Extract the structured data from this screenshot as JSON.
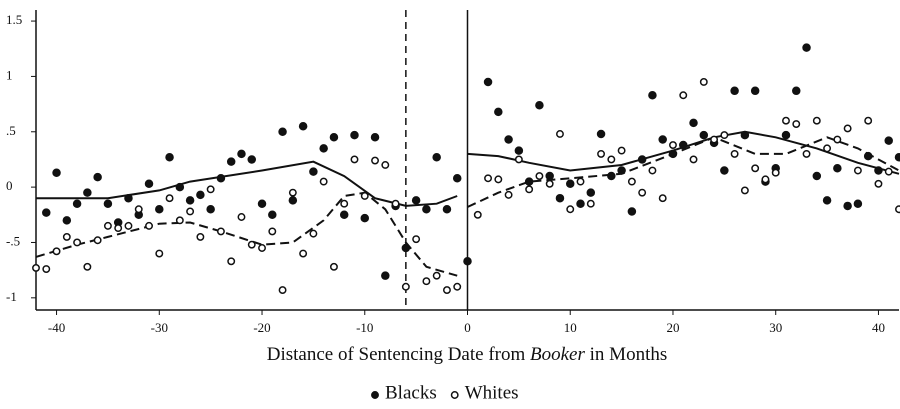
{
  "chart_data": {
    "type": "scatter",
    "xlabel": [
      "Distance of Sentencing Date from ",
      "Booker",
      " in Months"
    ],
    "xlabel_italic": [
      false,
      true,
      false
    ],
    "xlim": [
      -42,
      42
    ],
    "xticks": [
      -40,
      -30,
      -20,
      -10,
      0,
      10,
      20,
      30,
      40
    ],
    "ylim": [
      -1.11,
      1.6
    ],
    "yticks": [
      {
        "value": 1.5,
        "label": "1.5"
      },
      1,
      {
        "value": 0.5,
        "label": ".5"
      },
      0,
      {
        "value": -0.5,
        "label": "-.5"
      },
      -1
    ],
    "vlines": [
      {
        "x": -6,
        "style": "dashed"
      },
      {
        "x": 0,
        "style": "solid"
      }
    ],
    "series": [
      {
        "name": "Blacks",
        "marker": "filled",
        "color": "#111111",
        "x": [
          -41,
          -40,
          -39,
          -38,
          -37,
          -36,
          -35,
          -34,
          -33,
          -32,
          -31,
          -30,
          -29,
          -28,
          -27,
          -26,
          -25,
          -24,
          -23,
          -22,
          -21,
          -20,
          -19,
          -18,
          -17,
          -16,
          -15,
          -14,
          -13,
          -12,
          -11,
          -10,
          -9,
          -8,
          -7,
          -6,
          -5,
          -4,
          -3,
          -2,
          -1,
          0,
          2,
          3,
          4,
          5,
          6,
          7,
          8,
          9,
          10,
          11,
          12,
          13,
          14,
          15,
          16,
          17,
          18,
          19,
          20,
          21,
          22,
          23,
          24,
          25,
          26,
          27,
          28,
          29,
          30,
          31,
          32,
          33,
          34,
          35,
          36,
          37,
          38,
          39,
          40,
          41,
          42
        ],
        "values": [
          -0.23,
          0.13,
          -0.3,
          -0.15,
          -0.05,
          0.09,
          -0.15,
          -0.32,
          -0.1,
          -0.25,
          0.03,
          -0.2,
          0.27,
          0.0,
          -0.12,
          -0.07,
          -0.2,
          0.08,
          0.23,
          0.3,
          0.25,
          -0.15,
          -0.25,
          0.5,
          -0.12,
          0.55,
          0.14,
          0.35,
          0.45,
          -0.25,
          0.47,
          -0.28,
          0.45,
          -0.8,
          -0.17,
          -0.55,
          -0.12,
          -0.2,
          0.27,
          -0.2,
          0.08,
          -0.67,
          0.95,
          0.68,
          0.43,
          0.33,
          0.05,
          0.74,
          0.1,
          -0.1,
          0.03,
          -0.15,
          -0.05,
          0.48,
          0.1,
          0.15,
          -0.22,
          0.25,
          0.83,
          0.43,
          0.3,
          0.38,
          0.58,
          0.47,
          0.4,
          0.15,
          0.87,
          0.47,
          0.87,
          0.05,
          0.17,
          0.47,
          0.87,
          1.26,
          0.1,
          -0.12,
          0.17,
          -0.17,
          -0.15,
          0.28,
          0.15,
          0.42,
          0.27
        ]
      },
      {
        "name": "Whites",
        "marker": "open",
        "color": "#111111",
        "x": [
          -42,
          -41,
          -40,
          -39,
          -38,
          -37,
          -36,
          -35,
          -34,
          -33,
          -32,
          -31,
          -30,
          -29,
          -28,
          -27,
          -26,
          -25,
          -24,
          -23,
          -22,
          -21,
          -20,
          -19,
          -18,
          -17,
          -16,
          -15,
          -14,
          -13,
          -12,
          -11,
          -10,
          -9,
          -8,
          -7,
          -6,
          -5,
          -4,
          -3,
          -2,
          -1,
          1,
          2,
          3,
          4,
          5,
          6,
          7,
          8,
          9,
          10,
          11,
          12,
          13,
          14,
          15,
          16,
          17,
          18,
          19,
          20,
          21,
          22,
          23,
          24,
          25,
          26,
          27,
          28,
          29,
          30,
          31,
          32,
          33,
          34,
          35,
          36,
          37,
          38,
          39,
          40,
          41,
          42
        ],
        "values": [
          -0.73,
          -0.74,
          -0.58,
          -0.45,
          -0.5,
          -0.72,
          -0.48,
          -0.35,
          -0.37,
          -0.35,
          -0.2,
          -0.35,
          -0.6,
          -0.1,
          -0.3,
          -0.22,
          -0.45,
          -0.02,
          -0.4,
          -0.67,
          -0.27,
          -0.52,
          -0.55,
          -0.4,
          -0.93,
          -0.05,
          -0.6,
          -0.42,
          0.05,
          -0.72,
          -0.15,
          0.25,
          -0.08,
          0.24,
          0.2,
          -0.15,
          -0.9,
          -0.47,
          -0.85,
          -0.8,
          -0.93,
          -0.9,
          -0.25,
          0.08,
          0.07,
          -0.07,
          0.25,
          -0.02,
          0.1,
          0.03,
          0.48,
          -0.2,
          0.05,
          -0.15,
          0.3,
          0.25,
          0.33,
          0.05,
          -0.05,
          0.15,
          -0.1,
          0.38,
          0.83,
          0.25,
          0.95,
          0.43,
          0.47,
          0.3,
          -0.03,
          0.17,
          0.07,
          0.13,
          0.6,
          0.57,
          0.3,
          0.6,
          0.35,
          0.43,
          0.53,
          0.15,
          0.6,
          0.03,
          0.14,
          -0.2
        ]
      }
    ],
    "fits": [
      {
        "style": "solid",
        "x": [
          -42,
          -35,
          -30,
          -27,
          -20,
          -15,
          -12,
          -9,
          -6,
          -3,
          -1
        ],
        "values": [
          -0.1,
          -0.1,
          -0.03,
          0.05,
          0.15,
          0.23,
          0.1,
          -0.1,
          -0.17,
          -0.15,
          -0.08
        ]
      },
      {
        "style": "solid",
        "x": [
          0,
          3,
          6,
          10,
          15,
          20,
          24,
          27,
          30,
          34,
          38,
          42
        ],
        "values": [
          0.3,
          0.28,
          0.22,
          0.15,
          0.2,
          0.33,
          0.45,
          0.5,
          0.45,
          0.35,
          0.22,
          0.12
        ]
      },
      {
        "style": "dashed",
        "x": [
          -42,
          -38,
          -35,
          -30,
          -27,
          -24,
          -20,
          -17,
          -14,
          -12,
          -10,
          -8,
          -6,
          -4,
          -1
        ],
        "values": [
          -0.63,
          -0.52,
          -0.45,
          -0.33,
          -0.32,
          -0.4,
          -0.52,
          -0.5,
          -0.3,
          -0.08,
          -0.05,
          -0.2,
          -0.5,
          -0.72,
          -0.8
        ]
      },
      {
        "style": "dashed",
        "x": [
          0,
          3,
          6,
          10,
          15,
          20,
          24,
          28,
          31,
          35,
          38,
          42
        ],
        "values": [
          -0.18,
          -0.05,
          0.05,
          0.08,
          0.12,
          0.3,
          0.45,
          0.3,
          0.3,
          0.45,
          0.35,
          0.15
        ]
      }
    ]
  }
}
